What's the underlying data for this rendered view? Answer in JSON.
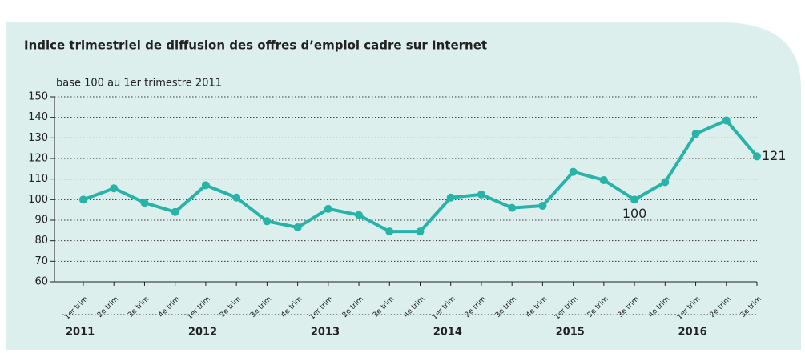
{
  "chart_data": {
    "type": "line",
    "title": "Indice trimestriel de diffusion des offres d’emploi cadre sur Internet",
    "subtitle": "base 100 au 1er trimestre 2011",
    "categories": [
      "1er trim",
      "2e trim",
      "3e trim",
      "4e trim",
      "1er trim",
      "2e trim",
      "3e trim",
      "4e trim",
      "1er trim",
      "2e trim",
      "3e trim",
      "4e trim",
      "1er trim",
      "2e trim",
      "3e trim",
      "4e trim",
      "1er trim",
      "2e trim",
      "3e trim",
      "4e trim",
      "1er trim",
      "2e trim",
      "3e trim"
    ],
    "years": [
      "2011",
      "2012",
      "2013",
      "2014",
      "2015",
      "2016"
    ],
    "values": [
      100,
      105.5,
      98.5,
      94,
      107,
      101,
      89.5,
      86.5,
      95.5,
      92.5,
      84.5,
      84.5,
      101,
      102.5,
      96,
      97,
      113.5,
      109.5,
      100,
      108.5,
      132,
      138.5,
      121
    ],
    "value_labels": [
      null,
      null,
      null,
      null,
      null,
      null,
      null,
      null,
      null,
      null,
      null,
      null,
      null,
      null,
      null,
      null,
      null,
      null,
      "100",
      null,
      null,
      null,
      "121"
    ],
    "color": "#27b3a8",
    "ylim": [
      60,
      150
    ],
    "yticks": [
      60,
      70,
      80,
      90,
      100,
      110,
      120,
      130,
      140,
      150
    ],
    "grid": true
  }
}
